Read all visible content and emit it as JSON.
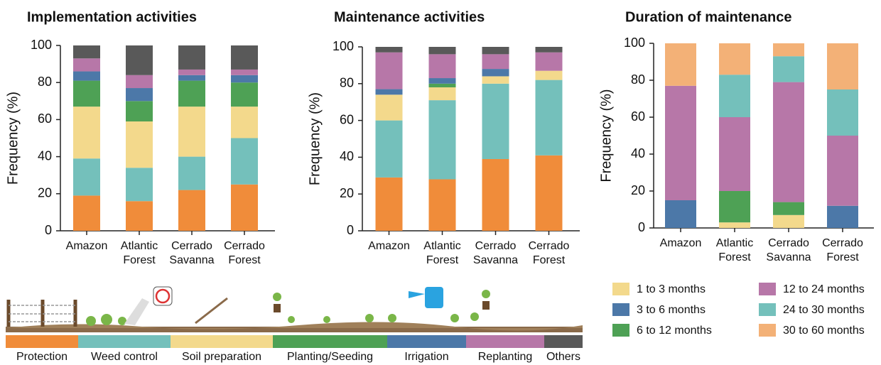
{
  "chart_data": [
    {
      "type": "stacked-bar",
      "title": "Implementation activities",
      "y_label": "Frequency (%)",
      "categories": [
        "Amazon",
        "Atlantic Forest",
        "Cerrado Savanna",
        "Cerrado Forest"
      ],
      "ylim": [
        0,
        100
      ],
      "yticks": [
        0,
        20,
        40,
        60,
        80,
        100
      ],
      "series": [
        {
          "name": "Protection",
          "color": "#f08c3a",
          "values": [
            19,
            16,
            22,
            25
          ]
        },
        {
          "name": "Weed control",
          "color": "#74c0bb",
          "values": [
            20,
            18,
            18,
            25
          ]
        },
        {
          "name": "Soil preparation",
          "color": "#f3d98c",
          "values": [
            28,
            25,
            27,
            17
          ]
        },
        {
          "name": "Planting/Seeding",
          "color": "#4ea155",
          "values": [
            14,
            11,
            14,
            13
          ]
        },
        {
          "name": "Irrigation",
          "color": "#4c78a8",
          "values": [
            5,
            7,
            3,
            4
          ]
        },
        {
          "name": "Replanting",
          "color": "#b777a8",
          "values": [
            7,
            7,
            3,
            3
          ]
        },
        {
          "name": "Others",
          "color": "#595959",
          "values": [
            7,
            16,
            13,
            13
          ]
        }
      ]
    },
    {
      "type": "stacked-bar",
      "title": "Maintenance activities",
      "y_label": "Frequency (%)",
      "categories": [
        "Amazon",
        "Atlantic Forest",
        "Cerrado Savanna",
        "Cerrado Forest"
      ],
      "ylim": [
        0,
        100
      ],
      "yticks": [
        0,
        20,
        40,
        60,
        80,
        100
      ],
      "series": [
        {
          "color": "#f08c3a",
          "values": [
            29,
            28,
            39,
            41
          ]
        },
        {
          "color": "#74c0bb",
          "values": [
            31,
            43,
            41,
            41
          ]
        },
        {
          "color": "#f3d98c",
          "values": [
            14,
            7,
            4,
            5
          ]
        },
        {
          "color": "#4ea155",
          "values": [
            0,
            2,
            0,
            0
          ]
        },
        {
          "color": "#4c78a8",
          "values": [
            3,
            3,
            4,
            0
          ]
        },
        {
          "color": "#b777a8",
          "values": [
            20,
            13,
            8,
            10
          ]
        },
        {
          "color": "#595959",
          "values": [
            3,
            4,
            4,
            3
          ]
        }
      ]
    },
    {
      "type": "stacked-bar",
      "title": "Duration of maintenance",
      "y_label": "Frequency (%)",
      "categories": [
        "Amazon",
        "Atlantic Forest",
        "Cerrado Savanna",
        "Cerrado Forest"
      ],
      "ylim": [
        0,
        100
      ],
      "yticks": [
        0,
        20,
        40,
        60,
        80,
        100
      ],
      "series": [
        {
          "name": "1 to 3 months",
          "color": "#f3d98c",
          "values": [
            0,
            3,
            7,
            0
          ]
        },
        {
          "name": "3 to 6 months",
          "color": "#4c78a8",
          "values": [
            15,
            0,
            0,
            12
          ]
        },
        {
          "name": "6 to 12 months",
          "color": "#4ea155",
          "values": [
            0,
            17,
            7,
            0
          ]
        },
        {
          "name": "12 to 24 months",
          "color": "#b777a8",
          "values": [
            62,
            40,
            65,
            38
          ]
        },
        {
          "name": "24 to 30 months",
          "color": "#74c0bb",
          "values": [
            0,
            23,
            14,
            25
          ]
        },
        {
          "name": "30 to 60 months",
          "color": "#f3b177",
          "values": [
            23,
            17,
            7,
            25
          ]
        }
      ]
    }
  ]
}
